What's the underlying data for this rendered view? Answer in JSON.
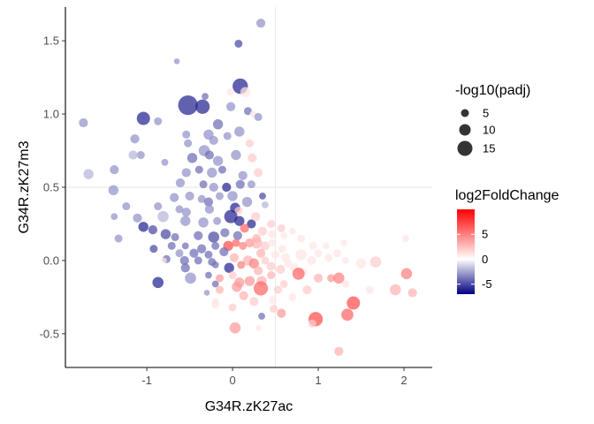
{
  "chart_data": {
    "type": "scatter",
    "xlabel": "G34R.zK27ac",
    "ylabel": "G34R.zK27m3",
    "xlim": [
      -1.95,
      2.33
    ],
    "ylim": [
      -0.73,
      1.73
    ],
    "x_ticks": [
      -1,
      0,
      1,
      2
    ],
    "x_tick_labels": [
      "-1",
      "0",
      "1",
      "2"
    ],
    "y_ticks": [
      -0.5,
      0.0,
      0.5,
      1.0,
      1.5
    ],
    "y_tick_labels": [
      "-0.5",
      "0.0",
      "0.5",
      "1.0",
      "1.5"
    ],
    "reference_lines": {
      "x": 0.5,
      "y": 0.5
    },
    "grid": false,
    "size_legend": {
      "title": "-log10(padj)",
      "entries": [
        {
          "value": 5,
          "label": "5"
        },
        {
          "value": 10,
          "label": "10"
        },
        {
          "value": 15,
          "label": "15"
        }
      ]
    },
    "color_legend": {
      "title": "log2FoldChange",
      "min": -7,
      "max": 10,
      "ticks": [
        5,
        0,
        -5
      ],
      "tick_labels": [
        "5",
        "0",
        "-5"
      ],
      "colors": {
        "low": "#000080",
        "mid": "#ffffff",
        "high": "#ff0000"
      }
    },
    "legend_position": "right",
    "points": [
      {
        "x": -0.52,
        "y": 1.06,
        "padj": 16,
        "lfc": -6
      },
      {
        "x": 0.09,
        "y": 1.19,
        "padj": 12,
        "lfc": -6
      },
      {
        "x": -0.35,
        "y": 1.05,
        "padj": 11,
        "lfc": -6
      },
      {
        "x": -1.04,
        "y": 0.97,
        "padj": 10,
        "lfc": -6
      },
      {
        "x": 0.33,
        "y": 1.62,
        "padj": 6,
        "lfc": -3
      },
      {
        "x": 0.07,
        "y": 1.48,
        "padj": 5,
        "lfc": -5
      },
      {
        "x": -0.65,
        "y": 1.36,
        "padj": 3,
        "lfc": -3
      },
      {
        "x": -1.74,
        "y": 0.94,
        "padj": 6,
        "lfc": -3
      },
      {
        "x": 0.15,
        "y": 1.15,
        "padj": 7,
        "lfc": 1
      },
      {
        "x": -0.03,
        "y": 1.15,
        "padj": 4,
        "lfc": 1
      },
      {
        "x": -0.02,
        "y": 1.05,
        "padj": 6,
        "lfc": -3
      },
      {
        "x": -0.32,
        "y": 1.12,
        "padj": 4,
        "lfc": -4
      },
      {
        "x": -0.17,
        "y": 0.93,
        "padj": 7,
        "lfc": -4
      },
      {
        "x": 0.18,
        "y": 1.02,
        "padj": 5,
        "lfc": -4
      },
      {
        "x": 0.24,
        "y": 1.0,
        "padj": 4,
        "lfc": 1
      },
      {
        "x": 0.3,
        "y": 0.98,
        "padj": 5,
        "lfc": -3
      },
      {
        "x": -0.87,
        "y": 0.95,
        "padj": 5,
        "lfc": -3
      },
      {
        "x": -0.54,
        "y": 0.86,
        "padj": 5,
        "lfc": -3
      },
      {
        "x": -0.28,
        "y": 0.86,
        "padj": 7,
        "lfc": -3
      },
      {
        "x": -0.22,
        "y": 0.82,
        "padj": 6,
        "lfc": -3
      },
      {
        "x": -0.06,
        "y": 0.85,
        "padj": 5,
        "lfc": -3
      },
      {
        "x": 0.08,
        "y": 0.88,
        "padj": 7,
        "lfc": -3
      },
      {
        "x": 0.2,
        "y": 0.8,
        "padj": 5,
        "lfc": 2
      },
      {
        "x": -1.14,
        "y": 0.83,
        "padj": 6,
        "lfc": -3
      },
      {
        "x": -1.07,
        "y": 0.72,
        "padj": 5,
        "lfc": -3
      },
      {
        "x": -1.16,
        "y": 0.72,
        "padj": 6,
        "lfc": -2
      },
      {
        "x": -0.52,
        "y": 0.8,
        "padj": 5,
        "lfc": -3
      },
      {
        "x": -0.47,
        "y": 0.7,
        "padj": 7,
        "lfc": -4
      },
      {
        "x": -0.33,
        "y": 0.75,
        "padj": 8,
        "lfc": -3
      },
      {
        "x": -0.27,
        "y": 0.72,
        "padj": 6,
        "lfc": -4
      },
      {
        "x": -0.17,
        "y": 0.68,
        "padj": 7,
        "lfc": -3
      },
      {
        "x": 0.04,
        "y": 0.72,
        "padj": 7,
        "lfc": -3
      },
      {
        "x": 0.23,
        "y": 0.7,
        "padj": 6,
        "lfc": 2
      },
      {
        "x": -0.79,
        "y": 0.67,
        "padj": 4,
        "lfc": -3
      },
      {
        "x": -0.54,
        "y": 0.6,
        "padj": 6,
        "lfc": -3
      },
      {
        "x": -0.39,
        "y": 0.62,
        "padj": 5,
        "lfc": -4
      },
      {
        "x": -0.24,
        "y": 0.6,
        "padj": 7,
        "lfc": -3
      },
      {
        "x": -0.12,
        "y": 0.62,
        "padj": 5,
        "lfc": -4
      },
      {
        "x": 0.12,
        "y": 0.58,
        "padj": 6,
        "lfc": -3
      },
      {
        "x": 0.3,
        "y": 0.6,
        "padj": 6,
        "lfc": 2
      },
      {
        "x": -1.68,
        "y": 0.59,
        "padj": 7,
        "lfc": -2
      },
      {
        "x": -1.38,
        "y": 0.62,
        "padj": 6,
        "lfc": -3
      },
      {
        "x": -0.61,
        "y": 0.53,
        "padj": 6,
        "lfc": -3
      },
      {
        "x": -0.34,
        "y": 0.52,
        "padj": 5,
        "lfc": -4
      },
      {
        "x": -0.22,
        "y": 0.5,
        "padj": 6,
        "lfc": -3
      },
      {
        "x": -0.07,
        "y": 0.5,
        "padj": 6,
        "lfc": -6
      },
      {
        "x": 0.09,
        "y": 0.52,
        "padj": 6,
        "lfc": -4
      },
      {
        "x": 0.22,
        "y": 0.52,
        "padj": 5,
        "lfc": -3
      },
      {
        "x": -1.39,
        "y": 0.48,
        "padj": 7,
        "lfc": -3
      },
      {
        "x": -0.68,
        "y": 0.43,
        "padj": 6,
        "lfc": -3
      },
      {
        "x": -0.5,
        "y": 0.44,
        "padj": 6,
        "lfc": -3
      },
      {
        "x": -0.36,
        "y": 0.42,
        "padj": 5,
        "lfc": -3
      },
      {
        "x": -0.28,
        "y": 0.4,
        "padj": 6,
        "lfc": -4
      },
      {
        "x": -0.15,
        "y": 0.44,
        "padj": 5,
        "lfc": -3
      },
      {
        "x": 0.0,
        "y": 0.44,
        "padj": 7,
        "lfc": -3
      },
      {
        "x": 0.17,
        "y": 0.4,
        "padj": 7,
        "lfc": -3
      },
      {
        "x": 0.35,
        "y": 0.44,
        "padj": 4,
        "lfc": -5
      },
      {
        "x": 0.38,
        "y": 0.38,
        "padj": 4,
        "lfc": -2
      },
      {
        "x": -1.24,
        "y": 0.37,
        "padj": 5,
        "lfc": -3
      },
      {
        "x": -0.87,
        "y": 0.37,
        "padj": 5,
        "lfc": -3
      },
      {
        "x": -0.62,
        "y": 0.35,
        "padj": 5,
        "lfc": -3
      },
      {
        "x": -0.54,
        "y": 0.33,
        "padj": 6,
        "lfc": -3
      },
      {
        "x": -0.27,
        "y": 0.35,
        "padj": 6,
        "lfc": -3
      },
      {
        "x": 0.03,
        "y": 0.36,
        "padj": 7,
        "lfc": -6
      },
      {
        "x": 0.07,
        "y": 0.34,
        "padj": 5,
        "lfc": 2
      },
      {
        "x": -1.11,
        "y": 0.29,
        "padj": 6,
        "lfc": -3
      },
      {
        "x": -0.81,
        "y": 0.3,
        "padj": 8,
        "lfc": -2
      },
      {
        "x": -0.55,
        "y": 0.27,
        "padj": 7,
        "lfc": -3
      },
      {
        "x": -0.34,
        "y": 0.26,
        "padj": 7,
        "lfc": -3
      },
      {
        "x": -0.18,
        "y": 0.27,
        "padj": 5,
        "lfc": -3
      },
      {
        "x": -0.02,
        "y": 0.3,
        "padj": 10,
        "lfc": -6
      },
      {
        "x": 0.08,
        "y": 0.27,
        "padj": 7,
        "lfc": -6
      },
      {
        "x": 0.22,
        "y": 0.25,
        "padj": 6,
        "lfc": -6
      },
      {
        "x": -1.38,
        "y": 0.3,
        "padj": 4,
        "lfc": -3
      },
      {
        "x": 0.27,
        "y": 0.3,
        "padj": 6,
        "lfc": 2
      },
      {
        "x": 0.45,
        "y": 0.25,
        "padj": 5,
        "lfc": 2
      },
      {
        "x": 0.57,
        "y": 0.22,
        "padj": 5,
        "lfc": 2
      },
      {
        "x": -1.04,
        "y": 0.23,
        "padj": 7,
        "lfc": -6
      },
      {
        "x": -0.93,
        "y": 0.21,
        "padj": 6,
        "lfc": -5
      },
      {
        "x": -0.78,
        "y": 0.18,
        "padj": 7,
        "lfc": -5
      },
      {
        "x": -0.67,
        "y": 0.16,
        "padj": 5,
        "lfc": -4
      },
      {
        "x": -0.4,
        "y": 0.17,
        "padj": 6,
        "lfc": -4
      },
      {
        "x": -0.22,
        "y": 0.16,
        "padj": 8,
        "lfc": -5
      },
      {
        "x": -0.09,
        "y": 0.19,
        "padj": 6,
        "lfc": -4
      },
      {
        "x": 0.06,
        "y": 0.17,
        "padj": 6,
        "lfc": -4
      },
      {
        "x": 0.14,
        "y": 0.22,
        "padj": 6,
        "lfc": 6
      },
      {
        "x": 0.28,
        "y": 0.15,
        "padj": 6,
        "lfc": 3
      },
      {
        "x": 0.35,
        "y": 0.2,
        "padj": 6,
        "lfc": 2
      },
      {
        "x": 0.46,
        "y": 0.18,
        "padj": 5,
        "lfc": 1
      },
      {
        "x": 0.6,
        "y": 0.17,
        "padj": 4,
        "lfc": 1
      },
      {
        "x": 0.7,
        "y": 0.2,
        "padj": 4,
        "lfc": 1
      },
      {
        "x": -1.33,
        "y": 0.15,
        "padj": 5,
        "lfc": -3
      },
      {
        "x": -0.05,
        "y": 0.1,
        "padj": 7,
        "lfc": 7
      },
      {
        "x": 0.04,
        "y": 0.12,
        "padj": 5,
        "lfc": 6
      },
      {
        "x": 0.12,
        "y": 0.1,
        "padj": 5,
        "lfc": 5
      },
      {
        "x": 0.2,
        "y": 0.12,
        "padj": 6,
        "lfc": 4
      },
      {
        "x": 0.28,
        "y": 0.12,
        "padj": 8,
        "lfc": 3
      },
      {
        "x": 0.38,
        "y": 0.1,
        "padj": 6,
        "lfc": 2
      },
      {
        "x": 0.46,
        "y": 0.12,
        "padj": 5,
        "lfc": 1
      },
      {
        "x": 0.58,
        "y": 0.08,
        "padj": 5,
        "lfc": 1
      },
      {
        "x": 0.8,
        "y": 0.15,
        "padj": 5,
        "lfc": 1
      },
      {
        "x": 0.94,
        "y": 0.1,
        "padj": 5,
        "lfc": 1
      },
      {
        "x": 1.09,
        "y": 0.1,
        "padj": 4,
        "lfc": 1
      },
      {
        "x": 1.3,
        "y": 0.12,
        "padj": 4,
        "lfc": 1
      },
      {
        "x": 2.02,
        "y": 0.15,
        "padj": 4,
        "lfc": 1
      },
      {
        "x": -0.92,
        "y": 0.08,
        "padj": 5,
        "lfc": -5
      },
      {
        "x": -0.71,
        "y": 0.1,
        "padj": 5,
        "lfc": -4
      },
      {
        "x": -0.55,
        "y": 0.1,
        "padj": 4,
        "lfc": -4
      },
      {
        "x": -0.36,
        "y": 0.08,
        "padj": 6,
        "lfc": -4
      },
      {
        "x": -0.2,
        "y": 0.1,
        "padj": 5,
        "lfc": -4
      },
      {
        "x": -0.62,
        "y": 0.05,
        "padj": 5,
        "lfc": -3
      },
      {
        "x": -0.45,
        "y": 0.05,
        "padj": 6,
        "lfc": -4
      },
      {
        "x": -0.28,
        "y": 0.04,
        "padj": 5,
        "lfc": -4
      },
      {
        "x": -0.1,
        "y": 0.06,
        "padj": 6,
        "lfc": -4
      },
      {
        "x": 0.33,
        "y": 0.05,
        "padj": 6,
        "lfc": 3
      },
      {
        "x": 0.5,
        "y": 0.04,
        "padj": 5,
        "lfc": 1
      },
      {
        "x": 0.62,
        "y": 0.02,
        "padj": 6,
        "lfc": 1
      },
      {
        "x": 0.8,
        "y": 0.04,
        "padj": 8,
        "lfc": 1
      },
      {
        "x": 1.0,
        "y": 0.05,
        "padj": 5,
        "lfc": 1
      },
      {
        "x": 1.22,
        "y": 0.05,
        "padj": 5,
        "lfc": 1
      },
      {
        "x": -0.77,
        "y": 0.01,
        "padj": 5,
        "lfc": -4
      },
      {
        "x": -0.56,
        "y": 0.0,
        "padj": 6,
        "lfc": -4
      },
      {
        "x": -0.4,
        "y": 0.0,
        "padj": 5,
        "lfc": -4
      },
      {
        "x": -0.24,
        "y": -0.01,
        "padj": 5,
        "lfc": -4
      },
      {
        "x": 0.02,
        "y": 0.02,
        "padj": 6,
        "lfc": 3
      },
      {
        "x": 0.18,
        "y": 0.0,
        "padj": 7,
        "lfc": 3
      },
      {
        "x": 0.38,
        "y": 0.0,
        "padj": 5,
        "lfc": 2
      },
      {
        "x": 0.65,
        "y": -0.02,
        "padj": 5,
        "lfc": 1
      },
      {
        "x": 0.92,
        "y": 0.0,
        "padj": 6,
        "lfc": 1
      },
      {
        "x": 1.12,
        "y": 0.02,
        "padj": 5,
        "lfc": 1
      },
      {
        "x": 1.32,
        "y": 0.0,
        "padj": 4,
        "lfc": 1
      },
      {
        "x": -0.8,
        "y": 0.0,
        "padj": 3,
        "lfc": 1
      },
      {
        "x": -0.2,
        "y": -0.03,
        "padj": 4,
        "lfc": -4
      },
      {
        "x": 0.1,
        "y": -0.03,
        "padj": 5,
        "lfc": 5
      },
      {
        "x": 0.25,
        "y": -0.02,
        "padj": 7,
        "lfc": 5
      },
      {
        "x": 0.45,
        "y": -0.04,
        "padj": 6,
        "lfc": 2
      },
      {
        "x": 0.72,
        "y": -0.05,
        "padj": 6,
        "lfc": 1
      },
      {
        "x": 1.5,
        "y": -0.02,
        "padj": 7,
        "lfc": 1
      },
      {
        "x": -0.55,
        "y": -0.05,
        "padj": 6,
        "lfc": -4
      },
      {
        "x": -0.04,
        "y": -0.05,
        "padj": 7,
        "lfc": -6
      },
      {
        "x": 0.3,
        "y": -0.07,
        "padj": 6,
        "lfc": 3
      },
      {
        "x": 0.56,
        "y": -0.06,
        "padj": 6,
        "lfc": 2
      },
      {
        "x": 0.82,
        "y": -0.08,
        "padj": 6,
        "lfc": 1
      },
      {
        "x": 1.67,
        "y": -0.01,
        "padj": 8,
        "lfc": 2
      },
      {
        "x": -0.28,
        "y": -0.1,
        "padj": 4,
        "lfc": -4
      },
      {
        "x": -0.15,
        "y": -0.12,
        "padj": 5,
        "lfc": 4
      },
      {
        "x": 0.0,
        "y": -0.1,
        "padj": 5,
        "lfc": 2
      },
      {
        "x": 0.45,
        "y": -0.1,
        "padj": 5,
        "lfc": 3
      },
      {
        "x": 0.77,
        "y": -0.09,
        "padj": 9,
        "lfc": 6
      },
      {
        "x": 1.0,
        "y": -0.12,
        "padj": 6,
        "lfc": 3
      },
      {
        "x": 1.15,
        "y": -0.12,
        "padj": 5,
        "lfc": 4
      },
      {
        "x": 1.24,
        "y": -0.12,
        "padj": 8,
        "lfc": 5
      },
      {
        "x": 2.03,
        "y": -0.09,
        "padj": 8,
        "lfc": 5
      },
      {
        "x": -0.49,
        "y": -0.12,
        "padj": 8,
        "lfc": -3
      },
      {
        "x": -0.87,
        "y": -0.15,
        "padj": 8,
        "lfc": -6
      },
      {
        "x": -0.2,
        "y": -0.16,
        "padj": 4,
        "lfc": -4
      },
      {
        "x": 0.08,
        "y": -0.15,
        "padj": 7,
        "lfc": 4
      },
      {
        "x": 0.2,
        "y": -0.14,
        "padj": 7,
        "lfc": 4
      },
      {
        "x": 0.34,
        "y": -0.14,
        "padj": 7,
        "lfc": 3
      },
      {
        "x": 0.6,
        "y": -0.16,
        "padj": 5,
        "lfc": 2
      },
      {
        "x": 1.32,
        "y": -0.16,
        "padj": 5,
        "lfc": 1
      },
      {
        "x": -0.15,
        "y": -0.2,
        "padj": 5,
        "lfc": 3
      },
      {
        "x": 0.05,
        "y": -0.18,
        "padj": 7,
        "lfc": 4
      },
      {
        "x": 0.33,
        "y": -0.19,
        "padj": 11,
        "lfc": 6
      },
      {
        "x": 0.53,
        "y": -0.2,
        "padj": 5,
        "lfc": 2
      },
      {
        "x": 0.87,
        "y": -0.2,
        "padj": 6,
        "lfc": 2
      },
      {
        "x": 1.6,
        "y": -0.2,
        "padj": 5,
        "lfc": 1
      },
      {
        "x": 1.9,
        "y": -0.2,
        "padj": 8,
        "lfc": 3
      },
      {
        "x": 2.1,
        "y": -0.22,
        "padj": 6,
        "lfc": 3
      },
      {
        "x": -0.2,
        "y": -0.28,
        "padj": 4,
        "lfc": 1
      },
      {
        "x": 0.13,
        "y": -0.24,
        "padj": 6,
        "lfc": 3
      },
      {
        "x": 0.47,
        "y": -0.27,
        "padj": 5,
        "lfc": 1
      },
      {
        "x": 0.7,
        "y": -0.25,
        "padj": 5,
        "lfc": 1
      },
      {
        "x": 1.41,
        "y": -0.29,
        "padj": 10,
        "lfc": 7
      },
      {
        "x": -0.2,
        "y": -0.3,
        "padj": 5,
        "lfc": 1
      },
      {
        "x": 0.0,
        "y": -0.32,
        "padj": 5,
        "lfc": 2
      },
      {
        "x": 0.48,
        "y": -0.33,
        "padj": 5,
        "lfc": 2
      },
      {
        "x": 0.57,
        "y": -0.36,
        "padj": 6,
        "lfc": 4
      },
      {
        "x": 1.34,
        "y": -0.37,
        "padj": 9,
        "lfc": 6
      },
      {
        "x": 0.34,
        "y": -0.38,
        "padj": 4,
        "lfc": -4
      },
      {
        "x": 0.97,
        "y": -0.4,
        "padj": 11,
        "lfc": 7
      },
      {
        "x": 0.93,
        "y": -0.43,
        "padj": 5,
        "lfc": 2
      },
      {
        "x": 0.03,
        "y": -0.46,
        "padj": 8,
        "lfc": 4
      },
      {
        "x": 0.3,
        "y": -0.46,
        "padj": 3,
        "lfc": 1
      },
      {
        "x": 1.24,
        "y": -0.62,
        "padj": 6,
        "lfc": 3
      },
      {
        "x": -0.3,
        "y": -0.22,
        "padj": 3,
        "lfc": -3
      },
      {
        "x": 0.25,
        "y": -0.28,
        "padj": 6,
        "lfc": 2
      }
    ]
  }
}
